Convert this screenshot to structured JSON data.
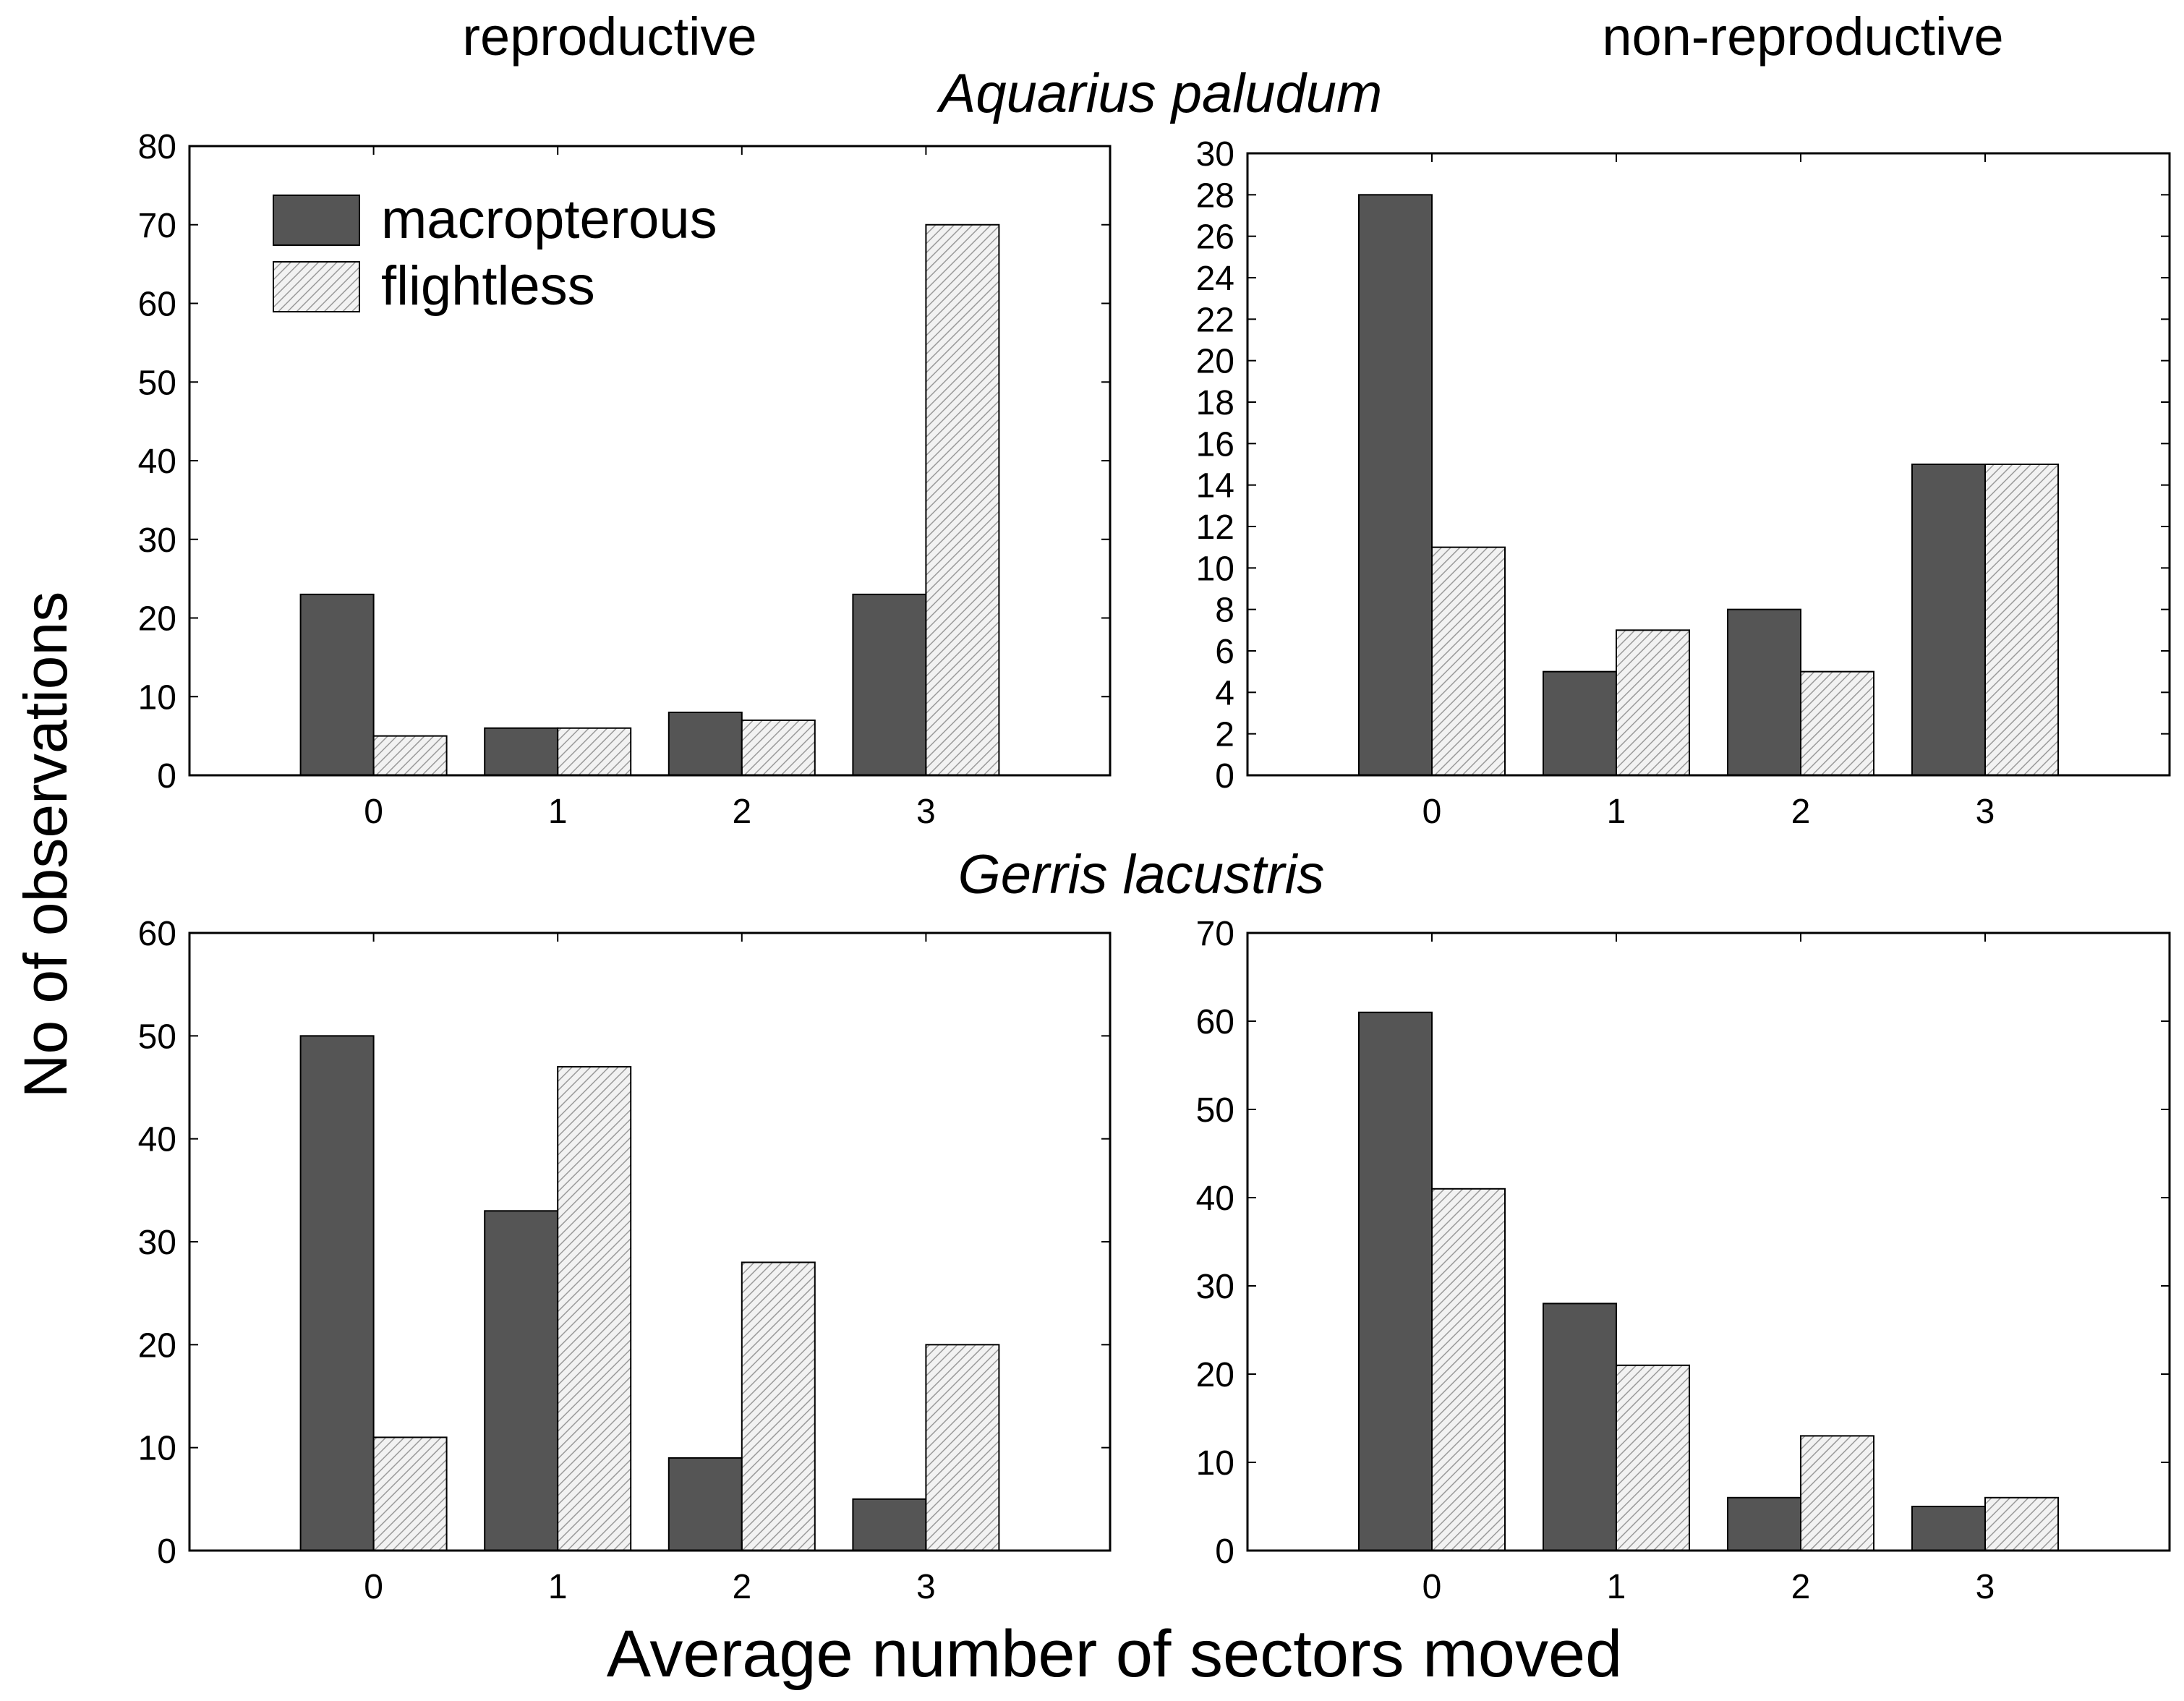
{
  "figure": {
    "column_titles": [
      "reproductive",
      "non-reproductive"
    ],
    "species_labels": [
      "Aquarius paludum",
      "Gerris lacustris"
    ],
    "ylabel": "No of observations",
    "xlabel": "Average number of sectors moved",
    "legend": [
      {
        "label": "macropterous",
        "color": "#555555",
        "pattern": "solid"
      },
      {
        "label": "flightless",
        "color": "#d9d9d9",
        "pattern": "hatched"
      }
    ]
  },
  "chart_data": [
    {
      "type": "bar",
      "id": "aquarius-reproductive",
      "species": "Aquarius paludum",
      "condition": "reproductive",
      "categories": [
        "0",
        "1",
        "2",
        "3"
      ],
      "series": [
        {
          "name": "macropterous",
          "values": [
            23,
            6,
            8,
            23
          ]
        },
        {
          "name": "flightless",
          "values": [
            5,
            6,
            7,
            70
          ]
        }
      ],
      "ylim": [
        0,
        80
      ],
      "yticks": [
        "0",
        "10",
        "20",
        "30",
        "40",
        "50",
        "60",
        "70",
        "80"
      ],
      "grid": false
    },
    {
      "type": "bar",
      "id": "aquarius-nonreproductive",
      "species": "Aquarius paludum",
      "condition": "non-reproductive",
      "categories": [
        "0",
        "1",
        "2",
        "3"
      ],
      "series": [
        {
          "name": "macropterous",
          "values": [
            28,
            5,
            8,
            15
          ]
        },
        {
          "name": "flightless",
          "values": [
            11,
            7,
            5,
            15
          ]
        }
      ],
      "ylim": [
        0,
        30
      ],
      "yticks": [
        "0",
        "2",
        "4",
        "6",
        "8",
        "10",
        "12",
        "14",
        "16",
        "18",
        "20",
        "22",
        "24",
        "26",
        "28",
        "30"
      ],
      "grid": false
    },
    {
      "type": "bar",
      "id": "gerris-reproductive",
      "species": "Gerris lacustris",
      "condition": "reproductive",
      "categories": [
        "0",
        "1",
        "2",
        "3"
      ],
      "series": [
        {
          "name": "macropterous",
          "values": [
            50,
            33,
            9,
            5
          ]
        },
        {
          "name": "flightless",
          "values": [
            11,
            47,
            28,
            20
          ]
        }
      ],
      "ylim": [
        0,
        60
      ],
      "yticks": [
        "0",
        "10",
        "20",
        "30",
        "40",
        "50",
        "60"
      ],
      "grid": false
    },
    {
      "type": "bar",
      "id": "gerris-nonreproductive",
      "species": "Gerris lacustris",
      "condition": "non-reproductive",
      "categories": [
        "0",
        "1",
        "2",
        "3"
      ],
      "series": [
        {
          "name": "macropterous",
          "values": [
            61,
            28,
            6,
            5
          ]
        },
        {
          "name": "flightless",
          "values": [
            41,
            21,
            13,
            6
          ]
        }
      ],
      "ylim": [
        0,
        70
      ],
      "yticks": [
        "0",
        "10",
        "20",
        "30",
        "40",
        "50",
        "60",
        "70"
      ],
      "grid": false
    }
  ]
}
